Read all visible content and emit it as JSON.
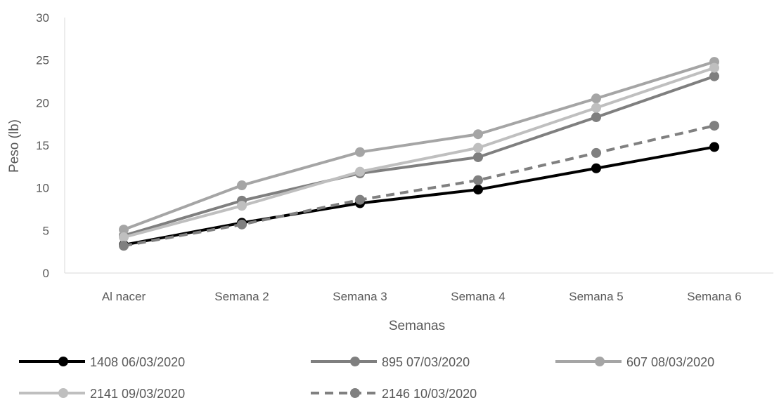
{
  "chart_data": {
    "type": "line",
    "title": "",
    "xlabel": "Semanas",
    "ylabel": "Peso (lb)",
    "ylim": [
      0,
      30
    ],
    "yticks": [
      0,
      5,
      10,
      15,
      20,
      25,
      30
    ],
    "categories": [
      "Al nacer",
      "Semana 2",
      "Semana 3",
      "Semana 4",
      "Semana 5",
      "Semana 6"
    ],
    "grid": false,
    "legend_position": "bottom",
    "series": [
      {
        "name": "1408 06/03/2020",
        "values": [
          3.3,
          5.9,
          8.2,
          9.8,
          12.3,
          14.8
        ],
        "color": "#000000",
        "dashed": false
      },
      {
        "name": "895 07/03/2020",
        "values": [
          4.4,
          8.5,
          11.7,
          13.6,
          18.3,
          23.1
        ],
        "color": "#7f7f7f",
        "dashed": false
      },
      {
        "name": "607 08/03/2020",
        "values": [
          5.1,
          10.3,
          14.2,
          16.3,
          20.5,
          24.8
        ],
        "color": "#a5a5a5",
        "dashed": false
      },
      {
        "name": "2141 09/03/2020",
        "values": [
          4.2,
          7.9,
          11.9,
          14.7,
          19.4,
          24.1
        ],
        "color": "#bfbfbf",
        "dashed": false
      },
      {
        "name": "2146 10/03/2020",
        "values": [
          3.2,
          5.7,
          8.6,
          10.9,
          14.1,
          17.3
        ],
        "color": "#808080",
        "dashed": true
      }
    ]
  }
}
